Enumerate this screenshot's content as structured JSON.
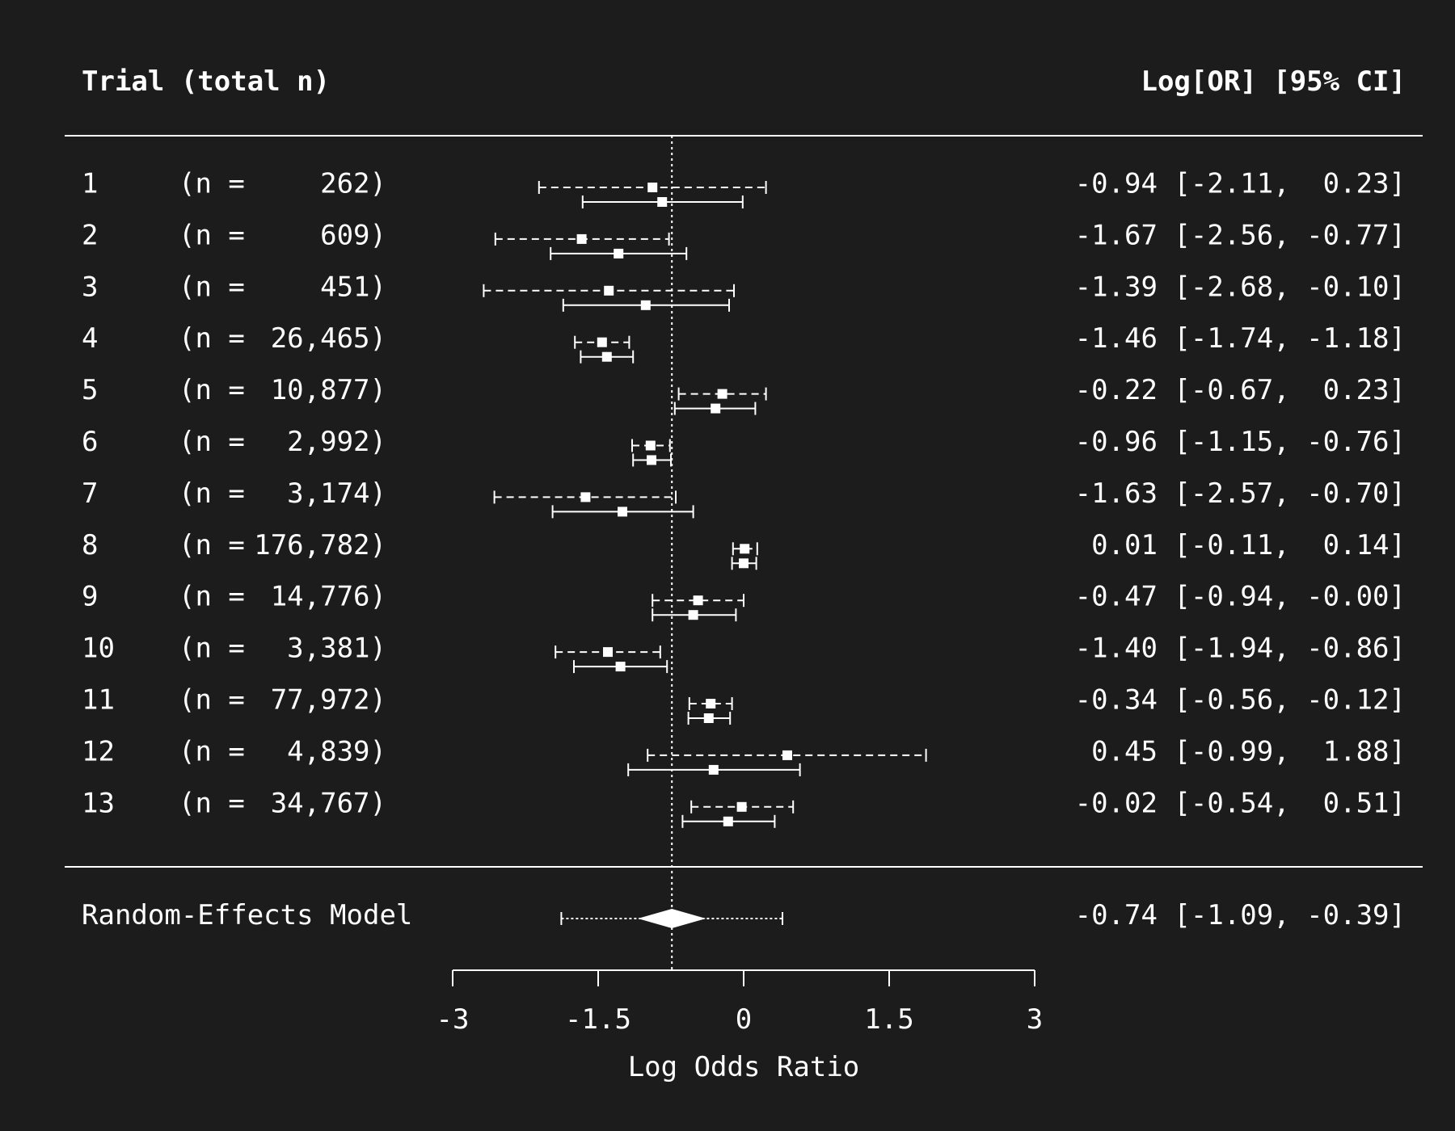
{
  "chart_data": {
    "type": "forest",
    "header": {
      "left": "Trial (total n)",
      "right": "Log[OR] [95% CI]"
    },
    "trials": [
      {
        "label": "1",
        "n": "262",
        "estimate": -0.94,
        "ci_low": -2.11,
        "ci_high": 0.23,
        "ci_text": "-0.94 [-2.11,  0.23]",
        "secondary": {
          "estimate": -0.84,
          "ci_low": -1.66,
          "ci_high": -0.01
        }
      },
      {
        "label": "2",
        "n": "609",
        "estimate": -1.67,
        "ci_low": -2.56,
        "ci_high": -0.77,
        "ci_text": "-1.67 [-2.56, -0.77]",
        "secondary": {
          "estimate": -1.29,
          "ci_low": -1.99,
          "ci_high": -0.59
        }
      },
      {
        "label": "3",
        "n": "451",
        "estimate": -1.39,
        "ci_low": -2.68,
        "ci_high": -0.1,
        "ci_text": "-1.39 [-2.68, -0.10]",
        "secondary": {
          "estimate": -1.01,
          "ci_low": -1.86,
          "ci_high": -0.15
        }
      },
      {
        "label": "4",
        "n": "26,465",
        "estimate": -1.46,
        "ci_low": -1.74,
        "ci_high": -1.18,
        "ci_text": "-1.46 [-1.74, -1.18]",
        "secondary": {
          "estimate": -1.41,
          "ci_low": -1.68,
          "ci_high": -1.14
        }
      },
      {
        "label": "5",
        "n": "10,877",
        "estimate": -0.22,
        "ci_low": -0.67,
        "ci_high": 0.23,
        "ci_text": "-0.22 [-0.67,  0.23]",
        "secondary": {
          "estimate": -0.29,
          "ci_low": -0.71,
          "ci_high": 0.12
        }
      },
      {
        "label": "6",
        "n": "2,992",
        "estimate": -0.96,
        "ci_low": -1.15,
        "ci_high": -0.76,
        "ci_text": "-0.96 [-1.15, -0.76]",
        "secondary": {
          "estimate": -0.95,
          "ci_low": -1.14,
          "ci_high": -0.75
        }
      },
      {
        "label": "7",
        "n": "3,174",
        "estimate": -1.63,
        "ci_low": -2.57,
        "ci_high": -0.7,
        "ci_text": "-1.63 [-2.57, -0.70]",
        "secondary": {
          "estimate": -1.25,
          "ci_low": -1.97,
          "ci_high": -0.52
        }
      },
      {
        "label": "8",
        "n": "176,782",
        "estimate": 0.01,
        "ci_low": -0.11,
        "ci_high": 0.14,
        "ci_text": " 0.01 [-0.11,  0.14]",
        "secondary": {
          "estimate": 0.0,
          "ci_low": -0.12,
          "ci_high": 0.13
        }
      },
      {
        "label": "9",
        "n": "14,776",
        "estimate": -0.47,
        "ci_low": -0.94,
        "ci_high": -0.0,
        "ci_text": "-0.47 [-0.94, -0.00]",
        "secondary": {
          "estimate": -0.52,
          "ci_low": -0.94,
          "ci_high": -0.08
        }
      },
      {
        "label": "10",
        "n": "3,381",
        "estimate": -1.4,
        "ci_low": -1.94,
        "ci_high": -0.86,
        "ci_text": "-1.40 [-1.94, -0.86]",
        "secondary": {
          "estimate": -1.27,
          "ci_low": -1.75,
          "ci_high": -0.79
        }
      },
      {
        "label": "11",
        "n": "77,972",
        "estimate": -0.34,
        "ci_low": -0.56,
        "ci_high": -0.12,
        "ci_text": "-0.34 [-0.56, -0.12]",
        "secondary": {
          "estimate": -0.36,
          "ci_low": -0.57,
          "ci_high": -0.14
        }
      },
      {
        "label": "12",
        "n": "4,839",
        "estimate": 0.45,
        "ci_low": -0.99,
        "ci_high": 1.88,
        "ci_text": " 0.45 [-0.99,  1.88]",
        "secondary": {
          "estimate": -0.31,
          "ci_low": -1.19,
          "ci_high": 0.58
        }
      },
      {
        "label": "13",
        "n": "34,767",
        "estimate": -0.02,
        "ci_low": -0.54,
        "ci_high": 0.51,
        "ci_text": "-0.02 [-0.54,  0.51]",
        "secondary": {
          "estimate": -0.16,
          "ci_low": -0.63,
          "ci_high": 0.32
        }
      }
    ],
    "summary": {
      "label": "Random-Effects Model",
      "estimate": -0.74,
      "ci_low": -1.09,
      "ci_high": -0.39,
      "pi_low": -1.88,
      "pi_high": 0.4,
      "ci_text": "-0.74 [-1.09, -0.39]"
    },
    "reference_line": -0.74,
    "xaxis": {
      "label": "Log Odds Ratio",
      "ticks": [
        -3,
        -1.5,
        0,
        1.5,
        3
      ],
      "tick_labels": [
        "-3",
        "-1.5",
        "0",
        "1.5",
        "3"
      ],
      "range": [
        -3,
        3
      ]
    },
    "colors": {
      "background": "#1c1c1c",
      "foreground": "#ffffff"
    }
  }
}
